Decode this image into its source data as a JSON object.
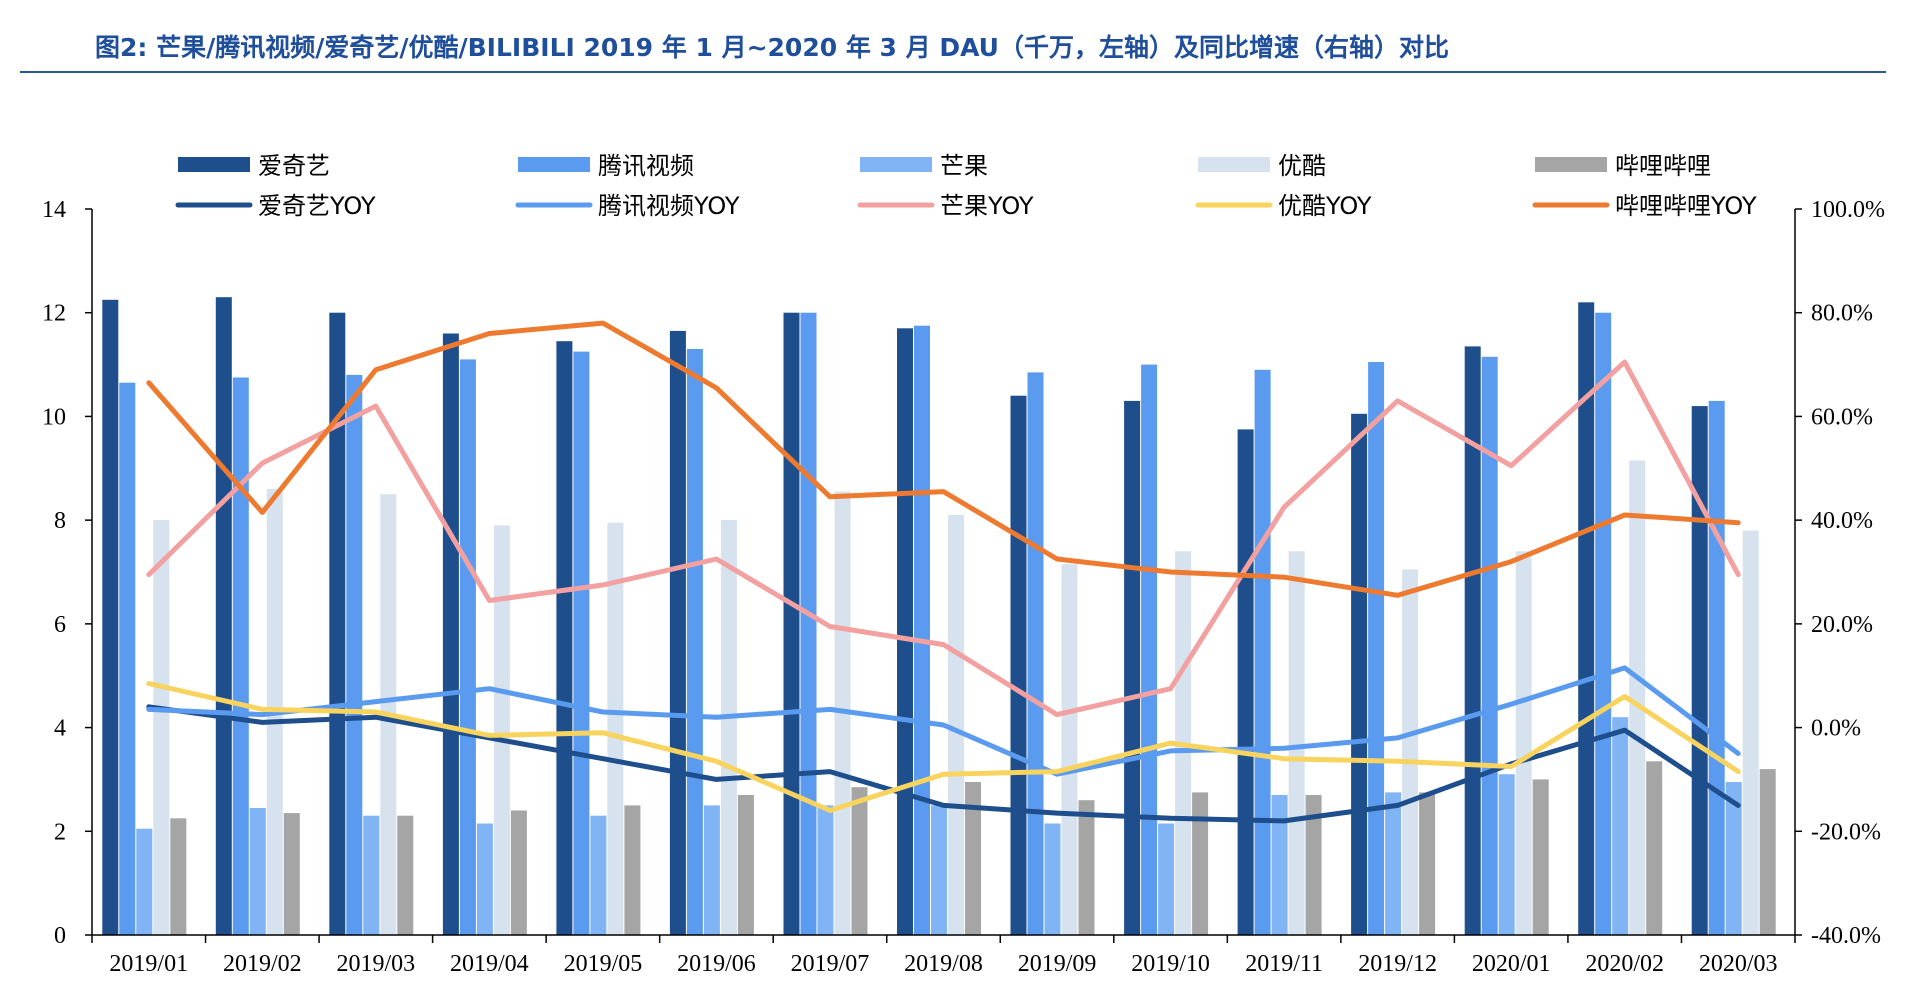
{
  "title": "图2: 芒果/腾讯视频/爱奇艺/优酷/BILIBILI 2019 年 1 月~2020 年 3 月 DAU（千万，左轴）及同比增速（右轴）对比",
  "chart_data": {
    "type": "bar",
    "categories": [
      "2019/01",
      "2019/02",
      "2019/03",
      "2019/04",
      "2019/05",
      "2019/06",
      "2019/07",
      "2019/08",
      "2019/09",
      "2019/10",
      "2019/11",
      "2019/12",
      "2020/01",
      "2020/02",
      "2020/03"
    ],
    "y_left": {
      "ticks": [
        "0",
        "2",
        "4",
        "6",
        "8",
        "10",
        "12",
        "14"
      ],
      "min": 0,
      "max": 14
    },
    "y_right": {
      "ticks": [
        "-40.0%",
        "-20.0%",
        "0.0%",
        "20.0%",
        "40.0%",
        "60.0%",
        "80.0%",
        "100.0%"
      ],
      "min": -40,
      "max": 100
    },
    "bar_series": [
      {
        "name": "爱奇艺",
        "color": "#1f4e8c",
        "values": [
          12.25,
          12.3,
          12.0,
          11.6,
          11.45,
          11.65,
          12.0,
          11.7,
          10.4,
          10.3,
          9.75,
          10.05,
          11.35,
          12.2,
          10.2
        ]
      },
      {
        "name": "腾讯视频",
        "color": "#5b9bef",
        "values": [
          10.65,
          10.75,
          10.8,
          11.1,
          11.25,
          11.3,
          12.0,
          11.75,
          10.85,
          11.0,
          10.9,
          11.05,
          11.15,
          12.0,
          10.3
        ]
      },
      {
        "name": "芒果",
        "color": "#80b4f5",
        "values": [
          2.05,
          2.45,
          2.3,
          2.15,
          2.3,
          2.5,
          2.5,
          2.5,
          2.15,
          2.15,
          2.7,
          2.75,
          3.1,
          4.2,
          2.95
        ]
      },
      {
        "name": "优酷",
        "color": "#d6e2ee",
        "values": [
          8.0,
          8.6,
          8.5,
          7.9,
          7.95,
          8.0,
          8.55,
          8.1,
          7.15,
          7.4,
          7.4,
          7.05,
          7.4,
          9.15,
          7.8
        ]
      },
      {
        "name": "哔哩哔哩",
        "color": "#a5a5a5",
        "values": [
          2.25,
          2.35,
          2.3,
          2.4,
          2.5,
          2.7,
          2.85,
          2.95,
          2.6,
          2.75,
          2.7,
          2.75,
          3.0,
          3.35,
          3.2
        ]
      }
    ],
    "line_series": [
      {
        "name": "爱奇艺YOY",
        "color": "#1f4e8c",
        "values": [
          4.0,
          1.0,
          2.0,
          -2.0,
          -6.0,
          -10.0,
          -8.5,
          -15.0,
          -16.5,
          -17.5,
          -18.0,
          -15.0,
          -7.0,
          -0.5,
          -15.0
        ]
      },
      {
        "name": "腾讯视频YOY",
        "color": "#5b9bef",
        "values": [
          3.5,
          2.5,
          5.0,
          7.5,
          3.0,
          2.0,
          3.5,
          0.5,
          -9.0,
          -4.5,
          -4.0,
          -2.0,
          4.5,
          11.5,
          -5.0
        ]
      },
      {
        "name": "芒果YOY",
        "color": "#f2a0a0",
        "values": [
          29.5,
          51.0,
          62.0,
          24.5,
          27.5,
          32.5,
          19.5,
          16.0,
          2.5,
          7.5,
          42.5,
          63.0,
          50.5,
          70.5,
          29.5
        ]
      },
      {
        "name": "优酷YOY",
        "color": "#f8d35e",
        "values": [
          8.5,
          3.5,
          3.0,
          -1.5,
          -1.0,
          -6.5,
          -16.0,
          -9.0,
          -8.5,
          -3.0,
          -6.0,
          -6.5,
          -7.5,
          6.0,
          -8.5
        ]
      },
      {
        "name": "哔哩哔哩YOY",
        "color": "#ee7a30",
        "values": [
          66.5,
          41.5,
          69.0,
          76.0,
          78.0,
          65.5,
          44.5,
          45.5,
          32.5,
          30.0,
          29.0,
          25.5,
          32.0,
          41.0,
          39.5
        ]
      }
    ]
  }
}
